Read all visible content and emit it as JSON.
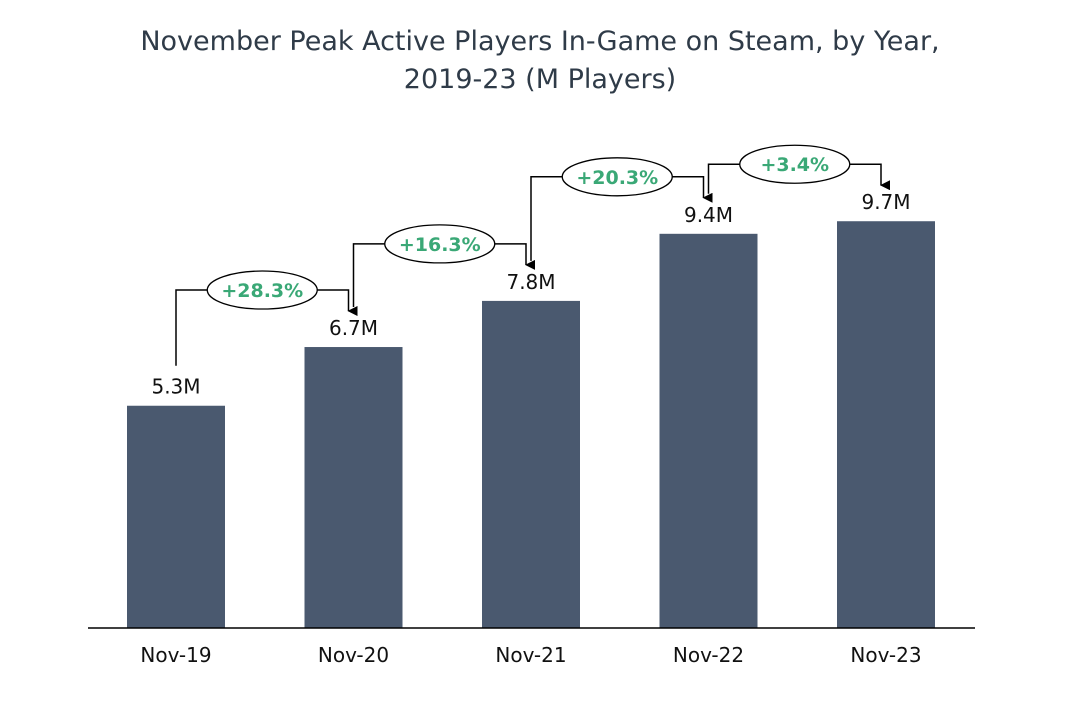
{
  "chart_data": {
    "type": "bar",
    "title_lines": [
      "November Peak Active Players In-Game on Steam, by Year,",
      "2019-23 (M Players)"
    ],
    "categories": [
      "Nov-19",
      "Nov-20",
      "Nov-21",
      "Nov-22",
      "Nov-23"
    ],
    "values": [
      5.3,
      6.7,
      7.8,
      9.4,
      9.7
    ],
    "value_labels": [
      "5.3M",
      "6.7M",
      "7.8M",
      "9.4M",
      "9.7M"
    ],
    "growth_labels": [
      "+28.3%",
      "+16.3%",
      "+20.3%",
      "+3.4%"
    ],
    "ylim": [
      0,
      12.4
    ],
    "bar_color": "#4a596f",
    "growth_color": "#3aa876",
    "axis_color": "#000000",
    "grid": false,
    "legend": "none"
  }
}
